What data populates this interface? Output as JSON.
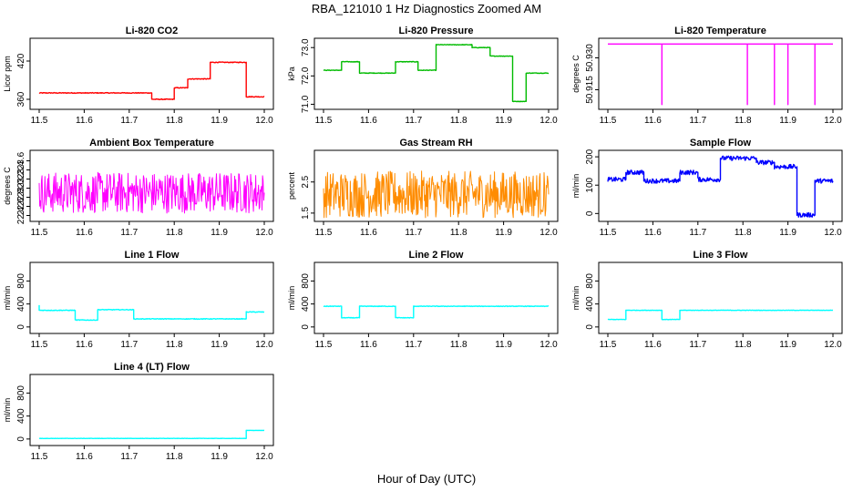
{
  "figure": {
    "title": "RBA_121010  1 Hz Diagnostics Zoomed AM",
    "xlabel": "Hour of Day (UTC)"
  },
  "chart_data": [
    {
      "type": "line",
      "title": "Li-820 CO2",
      "xlabel": "",
      "ylabel": "Licor ppm",
      "xlim": [
        11.5,
        12.0
      ],
      "ylim": [
        350,
        450
      ],
      "xticks": [
        "11.5",
        "11.6",
        "11.7",
        "11.8",
        "11.9",
        "12.0"
      ],
      "yticks": [
        "360",
        "420"
      ],
      "ytick_values": [
        360,
        420
      ],
      "color": "#ff0000",
      "noise": 0.6,
      "series": [
        {
          "x": [
            11.5,
            11.75,
            11.75,
            11.8,
            11.8,
            11.83,
            11.83,
            11.88,
            11.88,
            11.96,
            11.96,
            12.0
          ],
          "y": [
            370,
            370,
            360,
            360,
            378,
            378,
            392,
            392,
            418,
            418,
            364,
            364
          ]
        }
      ]
    },
    {
      "type": "line",
      "title": "Li-820 Pressure",
      "xlabel": "",
      "ylabel": "kPa",
      "xlim": [
        11.5,
        12.0
      ],
      "ylim": [
        70.95,
        73.2
      ],
      "xticks": [
        "11.5",
        "11.6",
        "11.7",
        "11.8",
        "11.9",
        "12.0"
      ],
      "yticks": [
        "71.0",
        "72.0",
        "73.0"
      ],
      "ytick_values": [
        71.0,
        72.0,
        73.0
      ],
      "color": "#00bb00",
      "noise": 0.01,
      "series": [
        {
          "x": [
            11.5,
            11.54,
            11.54,
            11.58,
            11.58,
            11.66,
            11.66,
            11.71,
            11.71,
            11.75,
            11.75,
            11.83,
            11.83,
            11.87,
            11.87,
            11.92,
            11.92,
            11.95,
            11.95,
            12.0
          ],
          "y": [
            72.2,
            72.2,
            72.5,
            72.5,
            72.1,
            72.1,
            72.5,
            72.5,
            72.2,
            72.2,
            73.1,
            73.1,
            73.0,
            73.0,
            72.7,
            72.7,
            71.1,
            71.1,
            72.1,
            72.1
          ]
        }
      ]
    },
    {
      "type": "line",
      "title": "Li-820 Temperature",
      "xlabel": "",
      "ylabel": "degrees C",
      "xlim": [
        11.5,
        12.0
      ],
      "ylim": [
        50.9075,
        50.9375
      ],
      "xticks": [
        "11.5",
        "11.6",
        "11.7",
        "11.8",
        "11.9",
        "12.0"
      ],
      "yticks": [
        "50.915",
        "50.930"
      ],
      "ytick_values": [
        50.915,
        50.93
      ],
      "color": "#ff00ff",
      "noise": 0,
      "series": [
        {
          "x": [
            11.5,
            11.62,
            11.62,
            11.62,
            11.81,
            11.81,
            11.81,
            11.87,
            11.87,
            11.87,
            11.9,
            11.9,
            11.9,
            11.96,
            11.96,
            11.96,
            12.0
          ],
          "y": [
            50.9365,
            50.9365,
            50.908,
            50.9365,
            50.9365,
            50.908,
            50.9365,
            50.9365,
            50.908,
            50.9365,
            50.9365,
            50.908,
            50.9365,
            50.9365,
            50.908,
            50.9365,
            50.9365
          ]
        }
      ]
    },
    {
      "type": "line",
      "title": "Ambient Box Temperature",
      "xlabel": "",
      "ylabel": "degrees C",
      "xlim": [
        11.5,
        12.0
      ],
      "ylim": [
        22.35,
        23.75
      ],
      "xticks": [
        "11.5",
        "11.6",
        "11.7",
        "11.8",
        "11.9",
        "12.0"
      ],
      "yticks": [
        "22.4",
        "22.6",
        "22.8",
        "23.0",
        "23.2",
        "23.4",
        "23.6"
      ],
      "ytick_values": [
        22.4,
        22.6,
        22.8,
        23.0,
        23.2,
        23.4,
        23.6
      ],
      "color": "#ff00ff",
      "noise": 0.45,
      "series": [
        {
          "x": [
            11.5,
            12.0
          ],
          "y": [
            22.9,
            22.9
          ]
        }
      ]
    },
    {
      "type": "line",
      "title": "Gas Stream RH",
      "xlabel": "",
      "ylabel": "percent",
      "xlim": [
        11.5,
        12.0
      ],
      "ylim": [
        1.35,
        3.4
      ],
      "xticks": [
        "11.5",
        "11.6",
        "11.7",
        "11.8",
        "11.9",
        "12.0"
      ],
      "yticks": [
        "1.5",
        "2.5"
      ],
      "ytick_values": [
        1.5,
        2.5
      ],
      "color": "#ff8c00",
      "noise": 0.75,
      "series": [
        {
          "x": [
            11.5,
            12.0
          ],
          "y": [
            2.1,
            2.1
          ]
        }
      ]
    },
    {
      "type": "line",
      "title": "Sample Flow",
      "xlabel": "",
      "ylabel": "ml/min",
      "xlim": [
        11.5,
        12.0
      ],
      "ylim": [
        -15,
        210
      ],
      "xticks": [
        "11.5",
        "11.6",
        "11.7",
        "11.8",
        "11.9",
        "12.0"
      ],
      "yticks": [
        "0",
        "100",
        "200"
      ],
      "ytick_values": [
        0,
        100,
        200
      ],
      "color": "#0000ff",
      "noise": 8,
      "series": [
        {
          "x": [
            11.5,
            11.54,
            11.54,
            11.58,
            11.58,
            11.66,
            11.66,
            11.7,
            11.7,
            11.75,
            11.75,
            11.83,
            11.83,
            11.87,
            11.87,
            11.92,
            11.92,
            11.96,
            11.96,
            12.0
          ],
          "y": [
            120,
            120,
            145,
            145,
            115,
            115,
            145,
            145,
            120,
            120,
            195,
            195,
            180,
            180,
            165,
            165,
            -5,
            -5,
            115,
            115
          ]
        }
      ]
    },
    {
      "type": "line",
      "title": "Line 1 Flow",
      "xlabel": "",
      "ylabel": "ml/min",
      "xlim": [
        11.5,
        12.0
      ],
      "ylim": [
        -50,
        1060
      ],
      "xticks": [
        "11.5",
        "11.6",
        "11.7",
        "11.8",
        "11.9",
        "12.0"
      ],
      "yticks": [
        "0",
        "400",
        "800"
      ],
      "ytick_values": [
        0,
        400,
        800
      ],
      "color": "#00ffff",
      "noise": 6,
      "series": [
        {
          "x": [
            11.5,
            11.5,
            11.58,
            11.58,
            11.63,
            11.63,
            11.71,
            11.71,
            11.96,
            11.96,
            12.0
          ],
          "y": [
            380,
            290,
            290,
            120,
            120,
            300,
            300,
            140,
            140,
            260,
            260
          ]
        }
      ]
    },
    {
      "type": "line",
      "title": "Line 2 Flow",
      "xlabel": "",
      "ylabel": "ml/min",
      "xlim": [
        11.5,
        12.0
      ],
      "ylim": [
        -50,
        1060
      ],
      "xticks": [
        "11.5",
        "11.6",
        "11.7",
        "11.8",
        "11.9",
        "12.0"
      ],
      "yticks": [
        "0",
        "400",
        "800"
      ],
      "ytick_values": [
        0,
        400,
        800
      ],
      "color": "#00ffff",
      "noise": 5,
      "series": [
        {
          "x": [
            11.5,
            11.54,
            11.54,
            11.58,
            11.58,
            11.66,
            11.66,
            11.7,
            11.7,
            12.0
          ],
          "y": [
            360,
            360,
            160,
            160,
            360,
            360,
            160,
            160,
            360,
            360
          ]
        }
      ]
    },
    {
      "type": "line",
      "title": "Line 3 Flow",
      "xlabel": "",
      "ylabel": "ml/min",
      "xlim": [
        11.5,
        12.0
      ],
      "ylim": [
        -50,
        1060
      ],
      "xticks": [
        "11.5",
        "11.6",
        "11.7",
        "11.8",
        "11.9",
        "12.0"
      ],
      "yticks": [
        "0",
        "400",
        "800"
      ],
      "ytick_values": [
        0,
        400,
        800
      ],
      "color": "#00ffff",
      "noise": 4,
      "series": [
        {
          "x": [
            11.5,
            11.54,
            11.54,
            11.62,
            11.62,
            11.66,
            11.66,
            12.0
          ],
          "y": [
            130,
            130,
            290,
            290,
            130,
            130,
            290,
            290
          ]
        }
      ]
    },
    {
      "type": "line",
      "title": "Line 4 (LT) Flow",
      "xlabel": "",
      "ylabel": "ml/min",
      "xlim": [
        11.5,
        12.0
      ],
      "ylim": [
        -50,
        1060
      ],
      "xticks": [
        "11.5",
        "11.6",
        "11.7",
        "11.8",
        "11.9",
        "12.0"
      ],
      "yticks": [
        "0",
        "400",
        "800"
      ],
      "ytick_values": [
        0,
        400,
        800
      ],
      "color": "#00ffff",
      "noise": 2,
      "series": [
        {
          "x": [
            11.5,
            11.96,
            11.96,
            12.0
          ],
          "y": [
            10,
            10,
            150,
            150
          ]
        }
      ]
    }
  ]
}
